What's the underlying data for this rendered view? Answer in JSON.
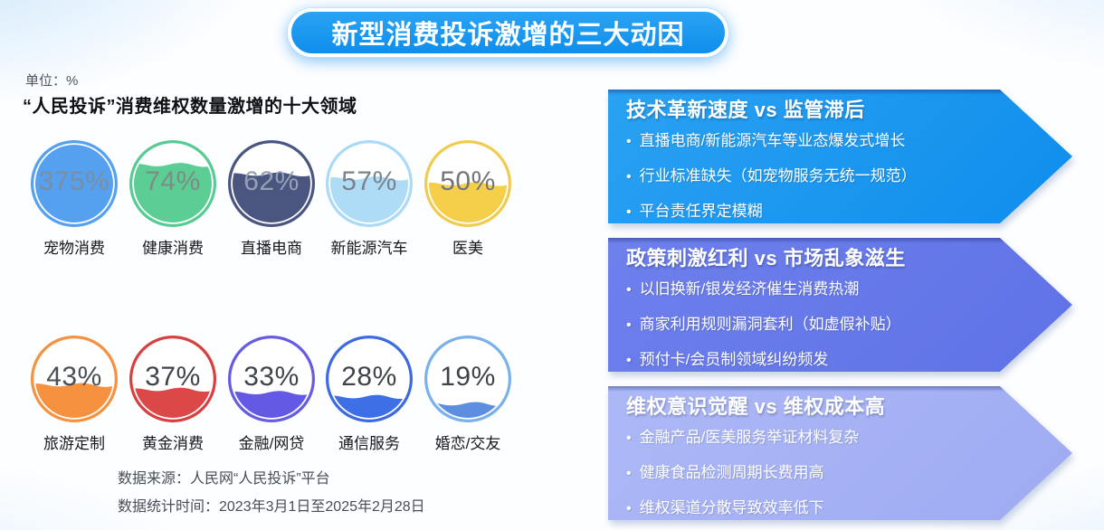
{
  "header": {
    "title": "新型消费投诉激增的三大动因"
  },
  "left_panel": {
    "unit_label": "单位：%",
    "chart_title": "“人民投诉”消费维权数量激增的十大领域",
    "source_line1": "数据来源：人民网“人民投诉”平台",
    "source_line2": "数据统计时间：2023年3月1日至2025年2月28日"
  },
  "chart_data": {
    "type": "bar",
    "variant": "liquid-fill-circular-gauges",
    "title": "“人民投诉”消费维权数量激增的十大领域",
    "unit": "%",
    "categories": [
      "宠物消费",
      "健康消费",
      "直播电商",
      "新能源汽车",
      "医美",
      "旅游定制",
      "黄金消费",
      "金融/网贷",
      "通信服务",
      "婚恋/交友"
    ],
    "values": [
      375,
      74,
      62,
      57,
      50,
      43,
      37,
      33,
      28,
      19
    ],
    "gauges": [
      {
        "label": "宠物消费",
        "value": 375,
        "value_label": "375%",
        "ring_color": "#55a1f0",
        "fill_color": "#55a1f0",
        "value_color": "#7d8da0"
      },
      {
        "label": "健康消费",
        "value": 74,
        "value_label": "74%",
        "ring_color": "#57cb93",
        "fill_color": "#5bcd95",
        "value_color": "#7e8c87"
      },
      {
        "label": "直播电商",
        "value": 62,
        "value_label": "62%",
        "ring_color": "#4a5580",
        "fill_color": "#4a5580",
        "value_color": "#96a0b5"
      },
      {
        "label": "新能源汽车",
        "value": 57,
        "value_label": "57%",
        "ring_color": "#abdaf6",
        "fill_color": "#aedcf7",
        "value_color": "#79838d"
      },
      {
        "label": "医美",
        "value": 50,
        "value_label": "50%",
        "ring_color": "#f0cc4e",
        "fill_color": "#f5cf49",
        "value_color": "#72767b"
      },
      {
        "label": "旅游定制",
        "value": 43,
        "value_label": "43%",
        "ring_color": "#f5913f",
        "fill_color": "#f69140",
        "value_color": "#4a4e55"
      },
      {
        "label": "黄金消费",
        "value": 37,
        "value_label": "37%",
        "ring_color": "#d84040",
        "fill_color": "#dc4848",
        "value_color": "#3f434a"
      },
      {
        "label": "金融/网贷",
        "value": 33,
        "value_label": "33%",
        "ring_color": "#675ce0",
        "fill_color": "#6459e4",
        "value_color": "#3f434a"
      },
      {
        "label": "通信服务",
        "value": 28,
        "value_label": "28%",
        "ring_color": "#3e6ae1",
        "fill_color": "#3f6fe6",
        "value_color": "#3f434a"
      },
      {
        "label": "婚恋/交友",
        "value": 19,
        "value_label": "19%",
        "ring_color": "#79b1ea",
        "fill_color": "#5d8fe0",
        "value_color": "#3f434a"
      }
    ]
  },
  "drivers": {
    "bullet_char": "•",
    "items": [
      {
        "title": "技术革新速度 vs 监管滞后",
        "color_top": "#2aa2f3",
        "color_bottom": "#0f8dec",
        "bullets": [
          "直播电商/新能源汽车等业态爆发式增长",
          "行业标准缺失（如宠物服务无统一规范）",
          "平台责任界定模糊"
        ]
      },
      {
        "title": "政策刺激红利 vs 市场乱象滋生",
        "color_top": "#6e80ec",
        "color_bottom": "#5f72e6",
        "bullets": [
          "以旧换新/银发经济催生消费热潮",
          "商家利用规则漏洞套利（如虚假补贴）",
          "预付卡/会员制领域纠纷频发"
        ]
      },
      {
        "title": "维权意识觉醒 vs 维权成本高",
        "color_top": "#acb8f6",
        "color_bottom": "#9fabf2",
        "bullets": [
          "金融产品/医美服务举证材料复杂",
          "健康食品检测周期长费用高",
          "维权渠道分散导致效率低下"
        ]
      }
    ]
  },
  "theme": {
    "title_pill_blue": "#1e9af0",
    "page_glow_blue": "#a5d4f8"
  }
}
